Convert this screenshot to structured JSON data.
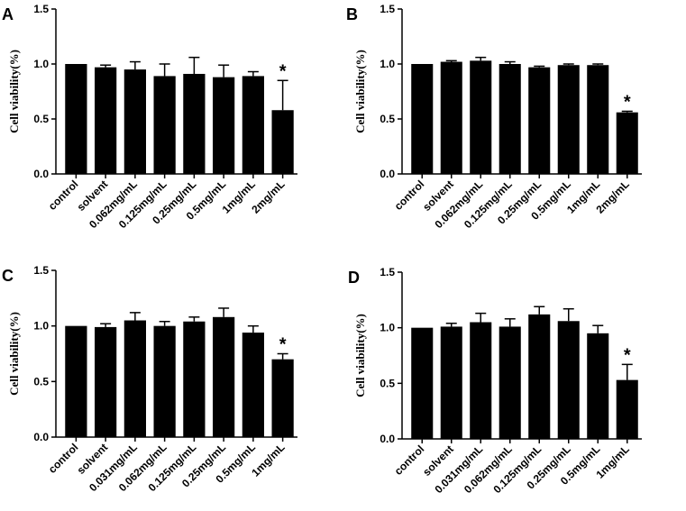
{
  "chart_data": [
    {
      "type": "bar",
      "panel": "A",
      "ylabel": "Cell viability(%)",
      "ylim": [
        0,
        1.5
      ],
      "yticks": [
        "0.0",
        "0.5",
        "1.0",
        "1.5"
      ],
      "categories": [
        "control",
        "solvent",
        "0.062mg/mL",
        "0.125mg/mL",
        "0.25mg/mL",
        "0.5mg/mL",
        "1mg/mL",
        "2mg/mL"
      ],
      "values": [
        1.0,
        0.97,
        0.95,
        0.89,
        0.91,
        0.88,
        0.89,
        0.58
      ],
      "errors": [
        0.0,
        0.02,
        0.07,
        0.11,
        0.15,
        0.11,
        0.04,
        0.27
      ],
      "annotations": [
        {
          "category_index": 7,
          "text": "*"
        }
      ]
    },
    {
      "type": "bar",
      "panel": "B",
      "ylabel": "Cell viability(%)",
      "ylim": [
        0,
        1.5
      ],
      "yticks": [
        "0.0",
        "0.5",
        "1.0",
        "1.5"
      ],
      "categories": [
        "control",
        "solvent",
        "0.062mg/mL",
        "0.125mg/mL",
        "0.25mg/mL",
        "0.5mg/mL",
        "1mg/mL",
        "2mg/mL"
      ],
      "values": [
        1.0,
        1.02,
        1.03,
        1.0,
        0.97,
        0.99,
        0.99,
        0.56
      ],
      "errors": [
        0.0,
        0.01,
        0.03,
        0.02,
        0.01,
        0.01,
        0.01,
        0.01
      ],
      "annotations": [
        {
          "category_index": 7,
          "text": "*"
        }
      ]
    },
    {
      "type": "bar",
      "panel": "C",
      "ylabel": "Cell viability(%)",
      "ylim": [
        0,
        1.5
      ],
      "yticks": [
        "0.0",
        "0.5",
        "1.0",
        "1.5"
      ],
      "categories": [
        "control",
        "solvent",
        "0.031mg/mL",
        "0.062mg/mL",
        "0.125mg/mL",
        "0.25mg/mL",
        "0.5mg/mL",
        "1mg/mL"
      ],
      "values": [
        1.0,
        0.99,
        1.05,
        1.0,
        1.04,
        1.08,
        0.94,
        0.7
      ],
      "errors": [
        0.0,
        0.03,
        0.07,
        0.04,
        0.04,
        0.08,
        0.06,
        0.05
      ],
      "annotations": [
        {
          "category_index": 7,
          "text": "*"
        }
      ]
    },
    {
      "type": "bar",
      "panel": "D",
      "ylabel": "Cell viability(%)",
      "ylim": [
        0,
        1.5
      ],
      "yticks": [
        "0.0",
        "0.5",
        "1.0",
        "1.5"
      ],
      "categories": [
        "control",
        "solvent",
        "0.031mg/mL",
        "0.062mg/mL",
        "0.125mg/mL",
        "0.25mg/mL",
        "0.5mg/mL",
        "1mg/mL"
      ],
      "values": [
        1.0,
        1.01,
        1.05,
        1.01,
        1.12,
        1.06,
        0.95,
        0.53
      ],
      "errors": [
        0.0,
        0.03,
        0.08,
        0.07,
        0.07,
        0.11,
        0.07,
        0.14
      ],
      "annotations": [
        {
          "category_index": 7,
          "text": "*"
        }
      ]
    }
  ]
}
